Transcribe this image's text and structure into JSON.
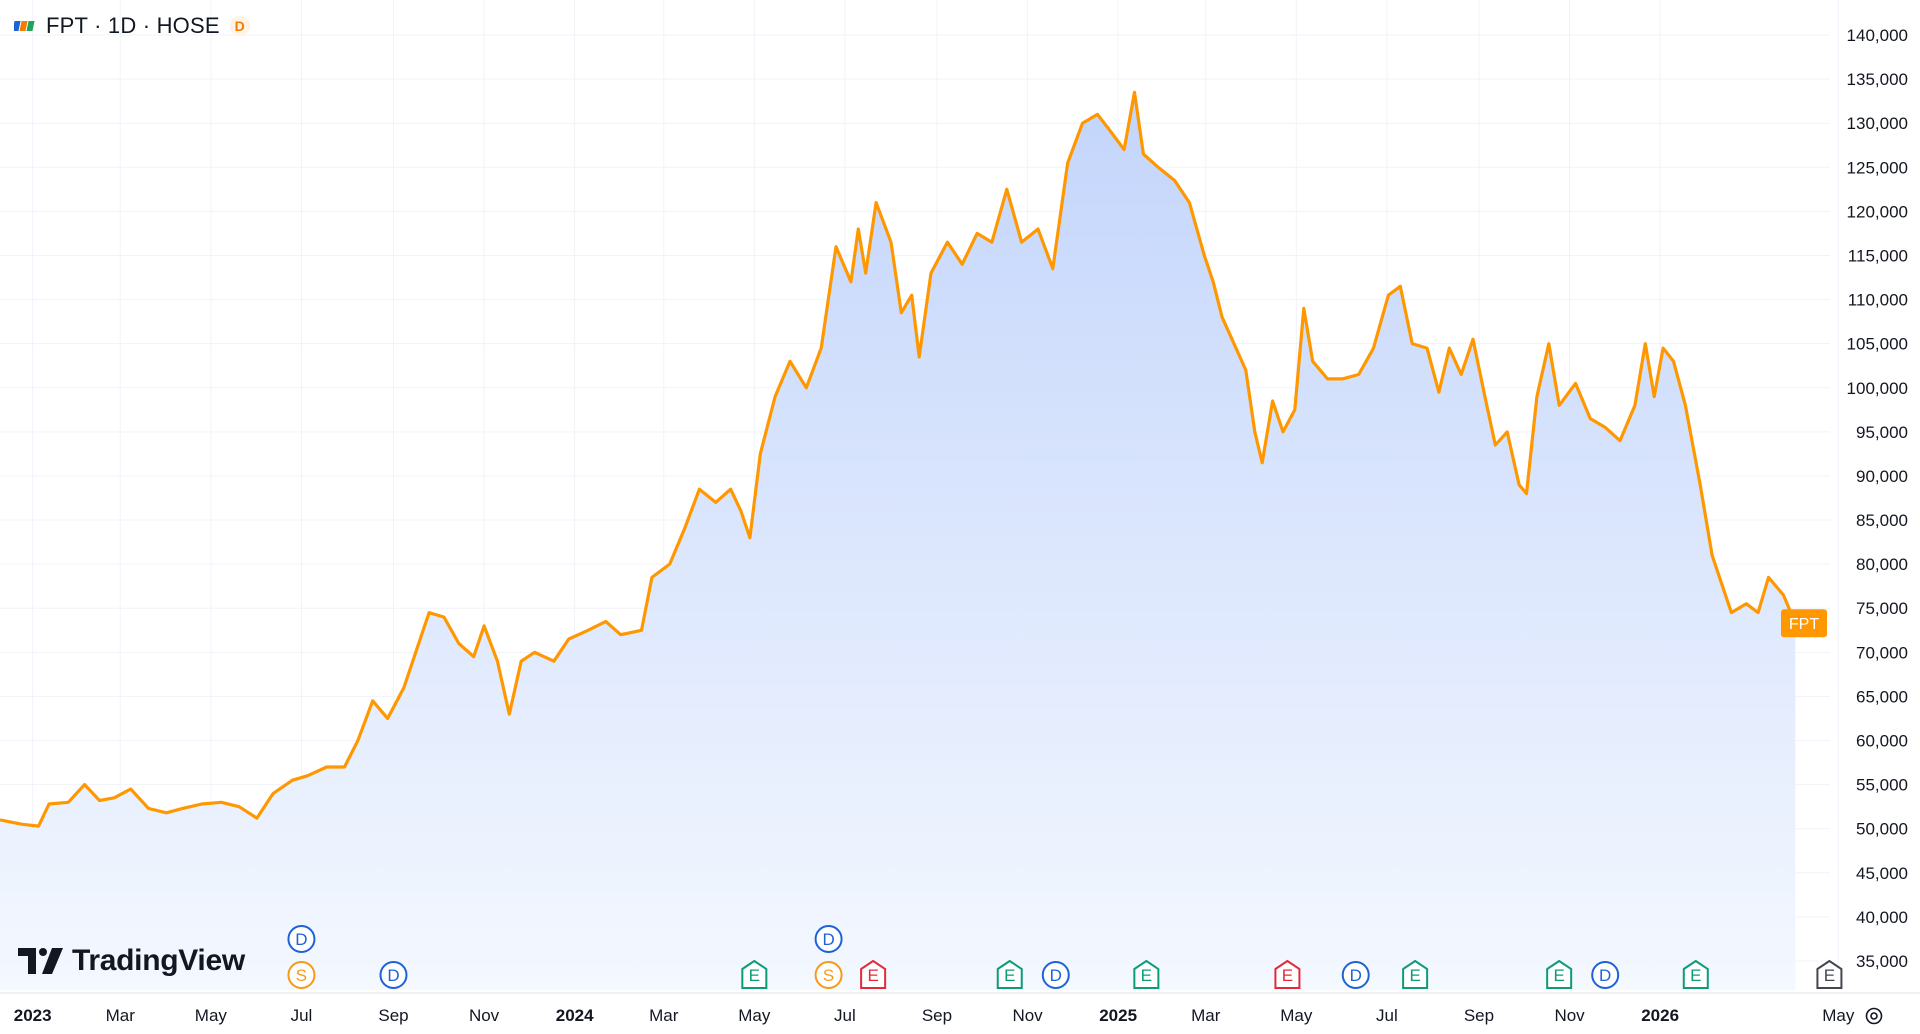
{
  "header": {
    "title": "FPT · 1D · HOSE",
    "tag": "D"
  },
  "branding": {
    "name": "TradingView"
  },
  "colors": {
    "line": "#ff9800",
    "area_top": "#c3d5fb",
    "area_bottom": "#f4f8ff",
    "grid": "#f0f3fa",
    "text": "#131722",
    "dividend": "#1e62d8",
    "split": "#f79a17",
    "earnings_beat": "#0d9b78",
    "earnings_miss": "#e22a3c",
    "earnings_future": "#434651",
    "price_tag_bg": "#ff9800"
  },
  "chart_data": {
    "type": "area",
    "symbol": "FPT",
    "interval": "1D",
    "exchange": "HOSE",
    "last_price_label": "FPT",
    "ylim": [
      33000,
      141000
    ],
    "y_ticks": [
      140000,
      135000,
      130000,
      125000,
      120000,
      115000,
      110000,
      105000,
      100000,
      95000,
      90000,
      85000,
      80000,
      75000,
      70000,
      65000,
      60000,
      55000,
      50000,
      45000,
      40000,
      35000
    ],
    "y_tick_labels": [
      "140,000",
      "135,000",
      "130,000",
      "125,000",
      "120,000",
      "115,000",
      "110,000",
      "105,000",
      "100,000",
      "95,000",
      "90,000",
      "85,000",
      "80,000",
      "75,000",
      "70,000",
      "65,000",
      "60,000",
      "55,000",
      "50,000",
      "45,000",
      "40,000",
      "35,000"
    ],
    "x_range": [
      "2022-12-10",
      "2026-06-25"
    ],
    "x_ticks": [
      {
        "label": "2023",
        "date": "2023-01-01",
        "bold": true
      },
      {
        "label": "Mar",
        "date": "2023-03-01",
        "bold": false
      },
      {
        "label": "May",
        "date": "2023-05-01",
        "bold": false
      },
      {
        "label": "Jul",
        "date": "2023-07-01",
        "bold": false
      },
      {
        "label": "Sep",
        "date": "2023-09-01",
        "bold": false
      },
      {
        "label": "Nov",
        "date": "2023-11-01",
        "bold": false
      },
      {
        "label": "2024",
        "date": "2024-01-01",
        "bold": true
      },
      {
        "label": "Mar",
        "date": "2024-03-01",
        "bold": false
      },
      {
        "label": "May",
        "date": "2024-05-01",
        "bold": false
      },
      {
        "label": "Jul",
        "date": "2024-07-01",
        "bold": false
      },
      {
        "label": "Sep",
        "date": "2024-09-01",
        "bold": false
      },
      {
        "label": "Nov",
        "date": "2024-11-01",
        "bold": false
      },
      {
        "label": "2025",
        "date": "2025-01-01",
        "bold": true
      },
      {
        "label": "Mar",
        "date": "2025-03-01",
        "bold": false
      },
      {
        "label": "May",
        "date": "2025-05-01",
        "bold": false
      },
      {
        "label": "Jul",
        "date": "2025-07-01",
        "bold": false
      },
      {
        "label": "Sep",
        "date": "2025-09-01",
        "bold": false
      },
      {
        "label": "Nov",
        "date": "2025-11-01",
        "bold": false
      },
      {
        "label": "2026",
        "date": "2026-01-01",
        "bold": true
      },
      {
        "label": "May",
        "date": "2026-05-01",
        "bold": false
      }
    ],
    "series": [
      {
        "name": "FPT",
        "points": [
          [
            "2022-12-10",
            51000
          ],
          [
            "2022-12-25",
            50500
          ],
          [
            "2023-01-05",
            50300
          ],
          [
            "2023-01-12",
            52800
          ],
          [
            "2023-01-25",
            53000
          ],
          [
            "2023-02-05",
            55000
          ],
          [
            "2023-02-15",
            53200
          ],
          [
            "2023-02-25",
            53500
          ],
          [
            "2023-03-08",
            54500
          ],
          [
            "2023-03-20",
            52300
          ],
          [
            "2023-04-01",
            51800
          ],
          [
            "2023-04-12",
            52300
          ],
          [
            "2023-04-25",
            52800
          ],
          [
            "2023-05-08",
            53000
          ],
          [
            "2023-05-20",
            52500
          ],
          [
            "2023-06-01",
            51200
          ],
          [
            "2023-06-12",
            54000
          ],
          [
            "2023-06-25",
            55500
          ],
          [
            "2023-07-05",
            56000
          ],
          [
            "2023-07-18",
            57000
          ],
          [
            "2023-07-30",
            57000
          ],
          [
            "2023-08-08",
            60000
          ],
          [
            "2023-08-18",
            64500
          ],
          [
            "2023-08-28",
            62500
          ],
          [
            "2023-09-08",
            66000
          ],
          [
            "2023-09-18",
            71000
          ],
          [
            "2023-09-25",
            74500
          ],
          [
            "2023-10-05",
            74000
          ],
          [
            "2023-10-15",
            71000
          ],
          [
            "2023-10-25",
            69500
          ],
          [
            "2023-11-01",
            73000
          ],
          [
            "2023-11-10",
            69000
          ],
          [
            "2023-11-18",
            63000
          ],
          [
            "2023-11-26",
            69000
          ],
          [
            "2023-12-05",
            70000
          ],
          [
            "2023-12-18",
            69000
          ],
          [
            "2023-12-28",
            71500
          ],
          [
            "2024-01-10",
            72500
          ],
          [
            "2024-01-22",
            73500
          ],
          [
            "2024-02-01",
            72000
          ],
          [
            "2024-02-15",
            72500
          ],
          [
            "2024-02-22",
            78500
          ],
          [
            "2024-03-05",
            80000
          ],
          [
            "2024-03-15",
            84000
          ],
          [
            "2024-03-25",
            88500
          ],
          [
            "2024-04-05",
            87000
          ],
          [
            "2024-04-15",
            88500
          ],
          [
            "2024-04-22",
            86000
          ],
          [
            "2024-04-28",
            83000
          ],
          [
            "2024-05-05",
            92500
          ],
          [
            "2024-05-15",
            99000
          ],
          [
            "2024-05-25",
            103000
          ],
          [
            "2024-06-05",
            100000
          ],
          [
            "2024-06-15",
            104500
          ],
          [
            "2024-06-25",
            116000
          ],
          [
            "2024-07-05",
            112000
          ],
          [
            "2024-07-10",
            118000
          ],
          [
            "2024-07-15",
            113000
          ],
          [
            "2024-07-22",
            121000
          ],
          [
            "2024-08-01",
            116500
          ],
          [
            "2024-08-08",
            108500
          ],
          [
            "2024-08-15",
            110500
          ],
          [
            "2024-08-20",
            103500
          ],
          [
            "2024-08-28",
            113000
          ],
          [
            "2024-09-08",
            116500
          ],
          [
            "2024-09-18",
            114000
          ],
          [
            "2024-09-28",
            117500
          ],
          [
            "2024-10-08",
            116500
          ],
          [
            "2024-10-18",
            122500
          ],
          [
            "2024-10-28",
            116500
          ],
          [
            "2024-11-08",
            118000
          ],
          [
            "2024-11-18",
            113500
          ],
          [
            "2024-11-28",
            125500
          ],
          [
            "2024-12-08",
            130000
          ],
          [
            "2024-12-18",
            131000
          ],
          [
            "2024-12-25",
            129500
          ],
          [
            "2025-01-05",
            127000
          ],
          [
            "2025-01-12",
            133500
          ],
          [
            "2025-01-18",
            126500
          ],
          [
            "2025-01-28",
            125000
          ],
          [
            "2025-02-08",
            123500
          ],
          [
            "2025-02-18",
            121000
          ],
          [
            "2025-02-28",
            115000
          ],
          [
            "2025-03-06",
            112000
          ],
          [
            "2025-03-12",
            108000
          ],
          [
            "2025-03-20",
            105000
          ],
          [
            "2025-03-28",
            102000
          ],
          [
            "2025-04-03",
            95000
          ],
          [
            "2025-04-08",
            91500
          ],
          [
            "2025-04-15",
            98500
          ],
          [
            "2025-04-22",
            95000
          ],
          [
            "2025-04-30",
            97500
          ],
          [
            "2025-05-06",
            109000
          ],
          [
            "2025-05-12",
            103000
          ],
          [
            "2025-05-22",
            101000
          ],
          [
            "2025-06-01",
            101000
          ],
          [
            "2025-06-12",
            101500
          ],
          [
            "2025-06-22",
            104500
          ],
          [
            "2025-07-02",
            110500
          ],
          [
            "2025-07-10",
            111500
          ],
          [
            "2025-07-18",
            105000
          ],
          [
            "2025-07-28",
            104500
          ],
          [
            "2025-08-05",
            99500
          ],
          [
            "2025-08-12",
            104500
          ],
          [
            "2025-08-20",
            101500
          ],
          [
            "2025-08-28",
            105500
          ],
          [
            "2025-09-05",
            99000
          ],
          [
            "2025-09-12",
            93500
          ],
          [
            "2025-09-20",
            95000
          ],
          [
            "2025-09-28",
            89000
          ],
          [
            "2025-10-03",
            88000
          ],
          [
            "2025-10-10",
            99000
          ],
          [
            "2025-10-18",
            105000
          ],
          [
            "2025-10-25",
            98000
          ],
          [
            "2025-11-05",
            100500
          ],
          [
            "2025-11-15",
            96500
          ],
          [
            "2025-11-25",
            95500
          ],
          [
            "2025-12-05",
            94000
          ],
          [
            "2025-12-15",
            98000
          ],
          [
            "2025-12-22",
            105000
          ],
          [
            "2025-12-28",
            99000
          ],
          [
            "2026-01-03",
            104500
          ],
          [
            "2026-01-10",
            103000
          ],
          [
            "2026-01-18",
            98000
          ],
          [
            "2026-01-28",
            89000
          ],
          [
            "2026-02-05",
            81000
          ],
          [
            "2026-02-12",
            77500
          ],
          [
            "2026-02-18",
            74500
          ],
          [
            "2026-02-28",
            75500
          ],
          [
            "2026-03-08",
            74500
          ],
          [
            "2026-03-15",
            78500
          ],
          [
            "2026-03-25",
            76500
          ],
          [
            "2026-04-02",
            73300
          ]
        ]
      }
    ],
    "events": [
      {
        "date": "2023-07-01",
        "row": 1,
        "letter": "D",
        "kind": "dividend"
      },
      {
        "date": "2023-07-01",
        "row": 0,
        "letter": "S",
        "kind": "split"
      },
      {
        "date": "2023-09-01",
        "row": 0,
        "letter": "D",
        "kind": "dividend"
      },
      {
        "date": "2024-05-01",
        "row": 0,
        "letter": "E",
        "kind": "earnings_beat"
      },
      {
        "date": "2024-06-20",
        "row": 1,
        "letter": "D",
        "kind": "dividend"
      },
      {
        "date": "2024-06-20",
        "row": 0,
        "letter": "S",
        "kind": "split"
      },
      {
        "date": "2024-07-20",
        "row": 0,
        "letter": "E",
        "kind": "earnings_miss"
      },
      {
        "date": "2024-10-20",
        "row": 0,
        "letter": "E",
        "kind": "earnings_beat"
      },
      {
        "date": "2024-11-20",
        "row": 0,
        "letter": "D",
        "kind": "dividend"
      },
      {
        "date": "2025-01-20",
        "row": 0,
        "letter": "E",
        "kind": "earnings_beat"
      },
      {
        "date": "2025-04-25",
        "row": 0,
        "letter": "E",
        "kind": "earnings_miss"
      },
      {
        "date": "2025-06-10",
        "row": 0,
        "letter": "D",
        "kind": "dividend"
      },
      {
        "date": "2025-07-20",
        "row": 0,
        "letter": "E",
        "kind": "earnings_beat"
      },
      {
        "date": "2025-10-25",
        "row": 0,
        "letter": "E",
        "kind": "earnings_beat"
      },
      {
        "date": "2025-11-25",
        "row": 0,
        "letter": "D",
        "kind": "dividend"
      },
      {
        "date": "2026-01-25",
        "row": 0,
        "letter": "E",
        "kind": "earnings_beat"
      },
      {
        "date": "2026-04-25",
        "row": 0,
        "letter": "E",
        "kind": "earnings_future"
      }
    ]
  }
}
